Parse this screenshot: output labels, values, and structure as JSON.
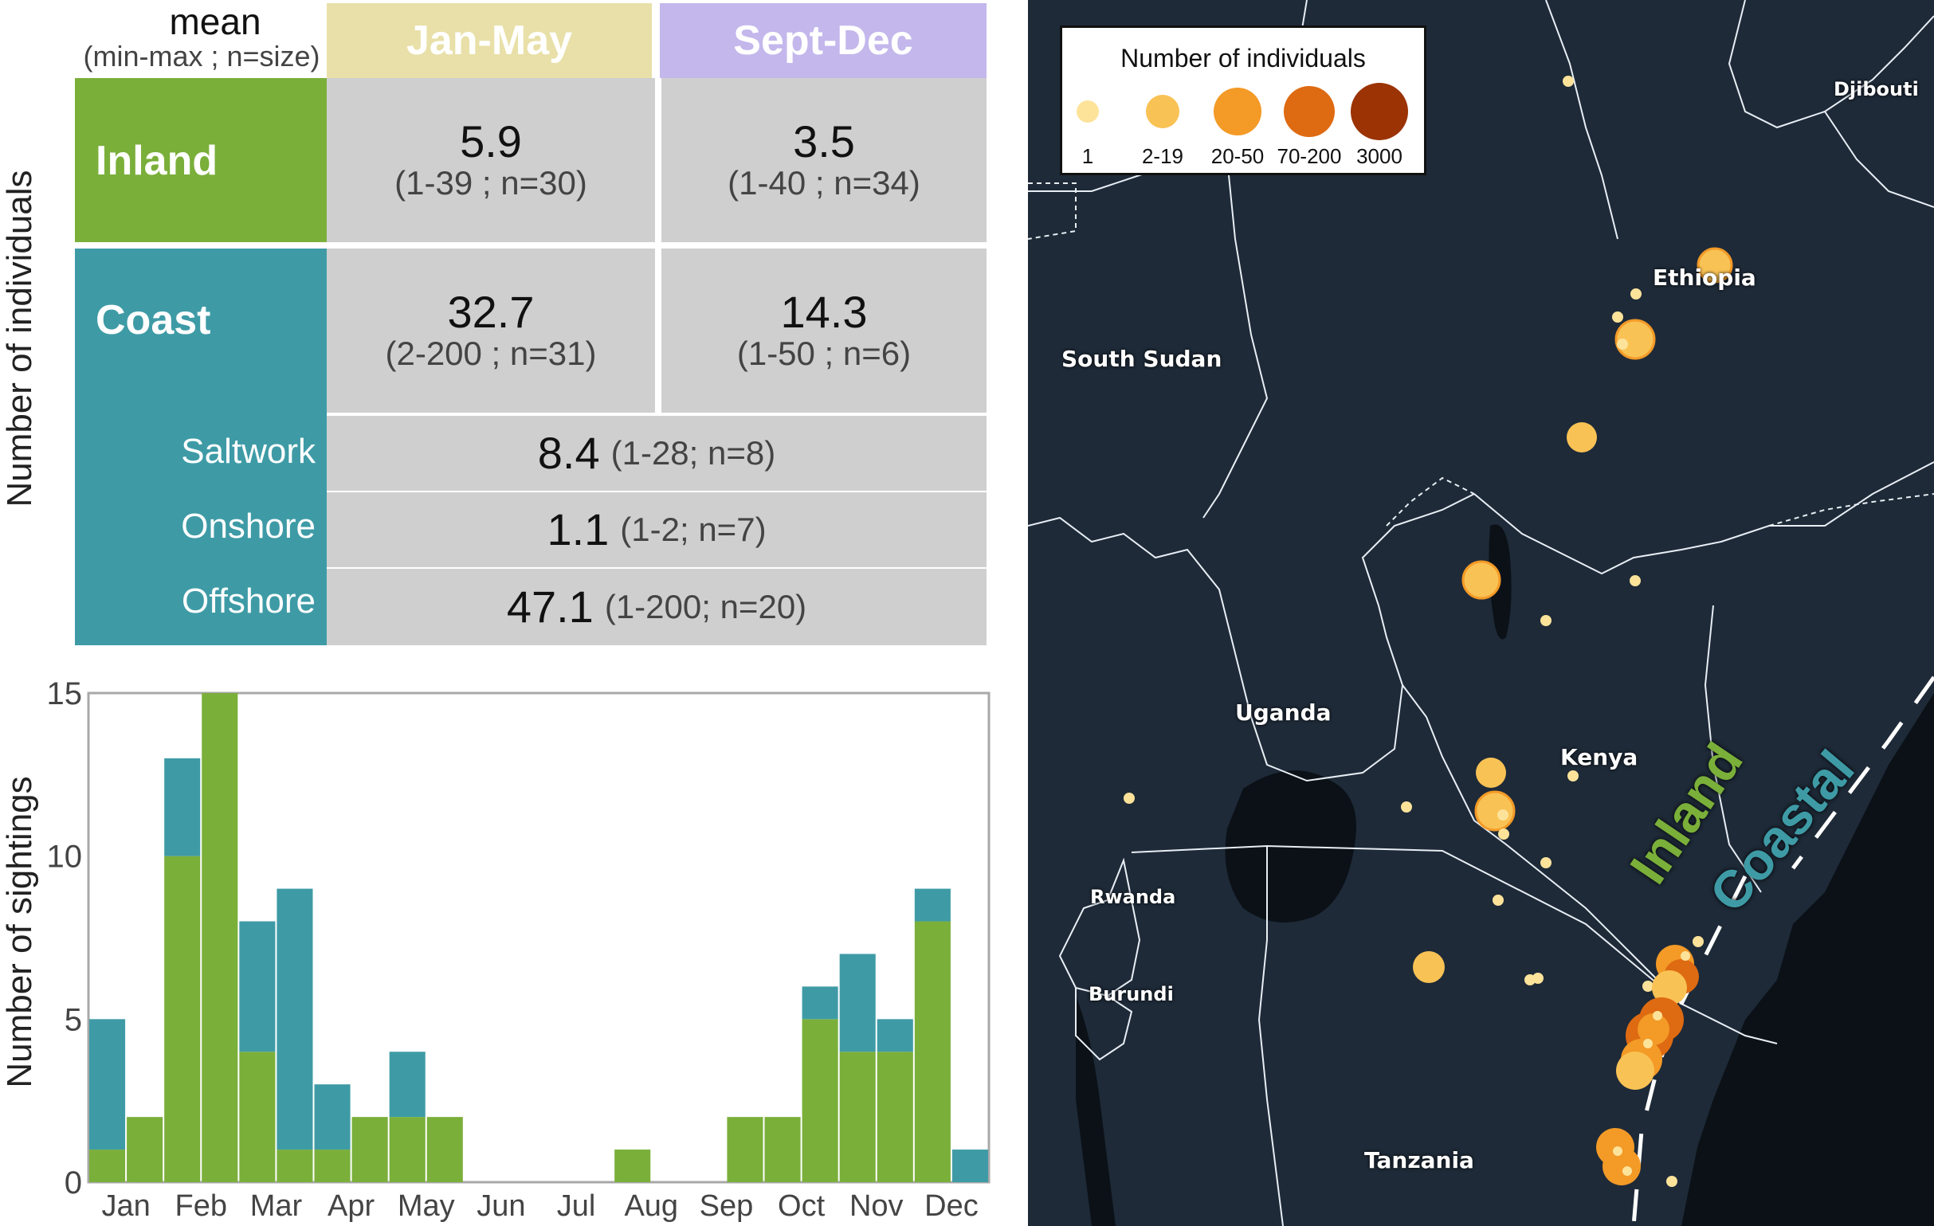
{
  "table": {
    "corner_title": "mean",
    "corner_subtitle": "(min-max ; n=size)",
    "col_jan": "Jan-May",
    "col_sep": "Sept-Dec",
    "y_label": "Number of individuals",
    "inland_label": "Inland",
    "coast_label": "Coast",
    "inland_jan_mean": "5.9",
    "inland_jan_range": "(1-39 ; n=30)",
    "inland_sep_mean": "3.5",
    "inland_sep_range": "(1-40 ; n=34)",
    "coast_jan_mean": "32.7",
    "coast_jan_range": "(2-200 ; n=31)",
    "coast_sep_mean": "14.3",
    "coast_sep_range": "(1-50 ; n=6)",
    "saltwork_label": "Saltwork",
    "saltwork_mean": "8.4",
    "saltwork_range": "(1-28; n=8)",
    "onshore_label": "Onshore",
    "onshore_mean": "1.1",
    "onshore_range": "(1-2; n=7)",
    "offshore_label": "Offshore",
    "offshore_mean": "47.1",
    "offshore_range": "(1-200; n=20)"
  },
  "colors": {
    "inland": "#7aaf3a",
    "coast": "#3e9ba6",
    "jan_header": "#e8e0a8",
    "sep_header": "#c3b7ec",
    "map_bg": "#1e2a38",
    "map_dark": "#0d1318"
  },
  "chart_data": {
    "type": "bar",
    "stacked": true,
    "ylabel": "Number of sightings",
    "ylim": [
      0,
      15
    ],
    "yticks": [
      0,
      5,
      10,
      15
    ],
    "month_labels": [
      "Jan",
      "Feb",
      "Mar",
      "Apr",
      "May",
      "Jun",
      "Jul",
      "Aug",
      "Sep",
      "Oct",
      "Nov",
      "Dec"
    ],
    "bins_per_month": 2,
    "series": [
      {
        "name": "Inland",
        "color": "#7aaf3a",
        "values": [
          1,
          2,
          10,
          15,
          4,
          1,
          1,
          2,
          2,
          2,
          0,
          0,
          0,
          0,
          1,
          0,
          0,
          2,
          2,
          5,
          4,
          4,
          8,
          0
        ]
      },
      {
        "name": "Coast",
        "color": "#3e9ba6",
        "values": [
          4,
          0,
          3,
          0,
          4,
          8,
          2,
          0,
          2,
          0,
          0,
          0,
          0,
          0,
          0,
          0,
          0,
          0,
          0,
          1,
          3,
          1,
          1,
          1
        ]
      }
    ]
  },
  "map": {
    "legend_title": "Number of individuals",
    "legend_items": [
      {
        "label": "1",
        "color": "#fde39a"
      },
      {
        "label": "2-19",
        "color": "#f9c254"
      },
      {
        "label": "20-50",
        "color": "#f39a27"
      },
      {
        "label": "70-200",
        "color": "#de6a12"
      },
      {
        "label": "3000",
        "color": "#9b3305"
      }
    ],
    "countries": {
      "djibouti": "Djibouti",
      "ethiopia": "Ethiopia",
      "south_sudan": "South Sudan",
      "uganda": "Uganda",
      "kenya": "Kenya",
      "rwanda": "Rwanda",
      "burundi": "Burundi",
      "tanzania": "Tanzania"
    },
    "zone_inland": "Inland",
    "zone_coastal": "Coastal"
  }
}
